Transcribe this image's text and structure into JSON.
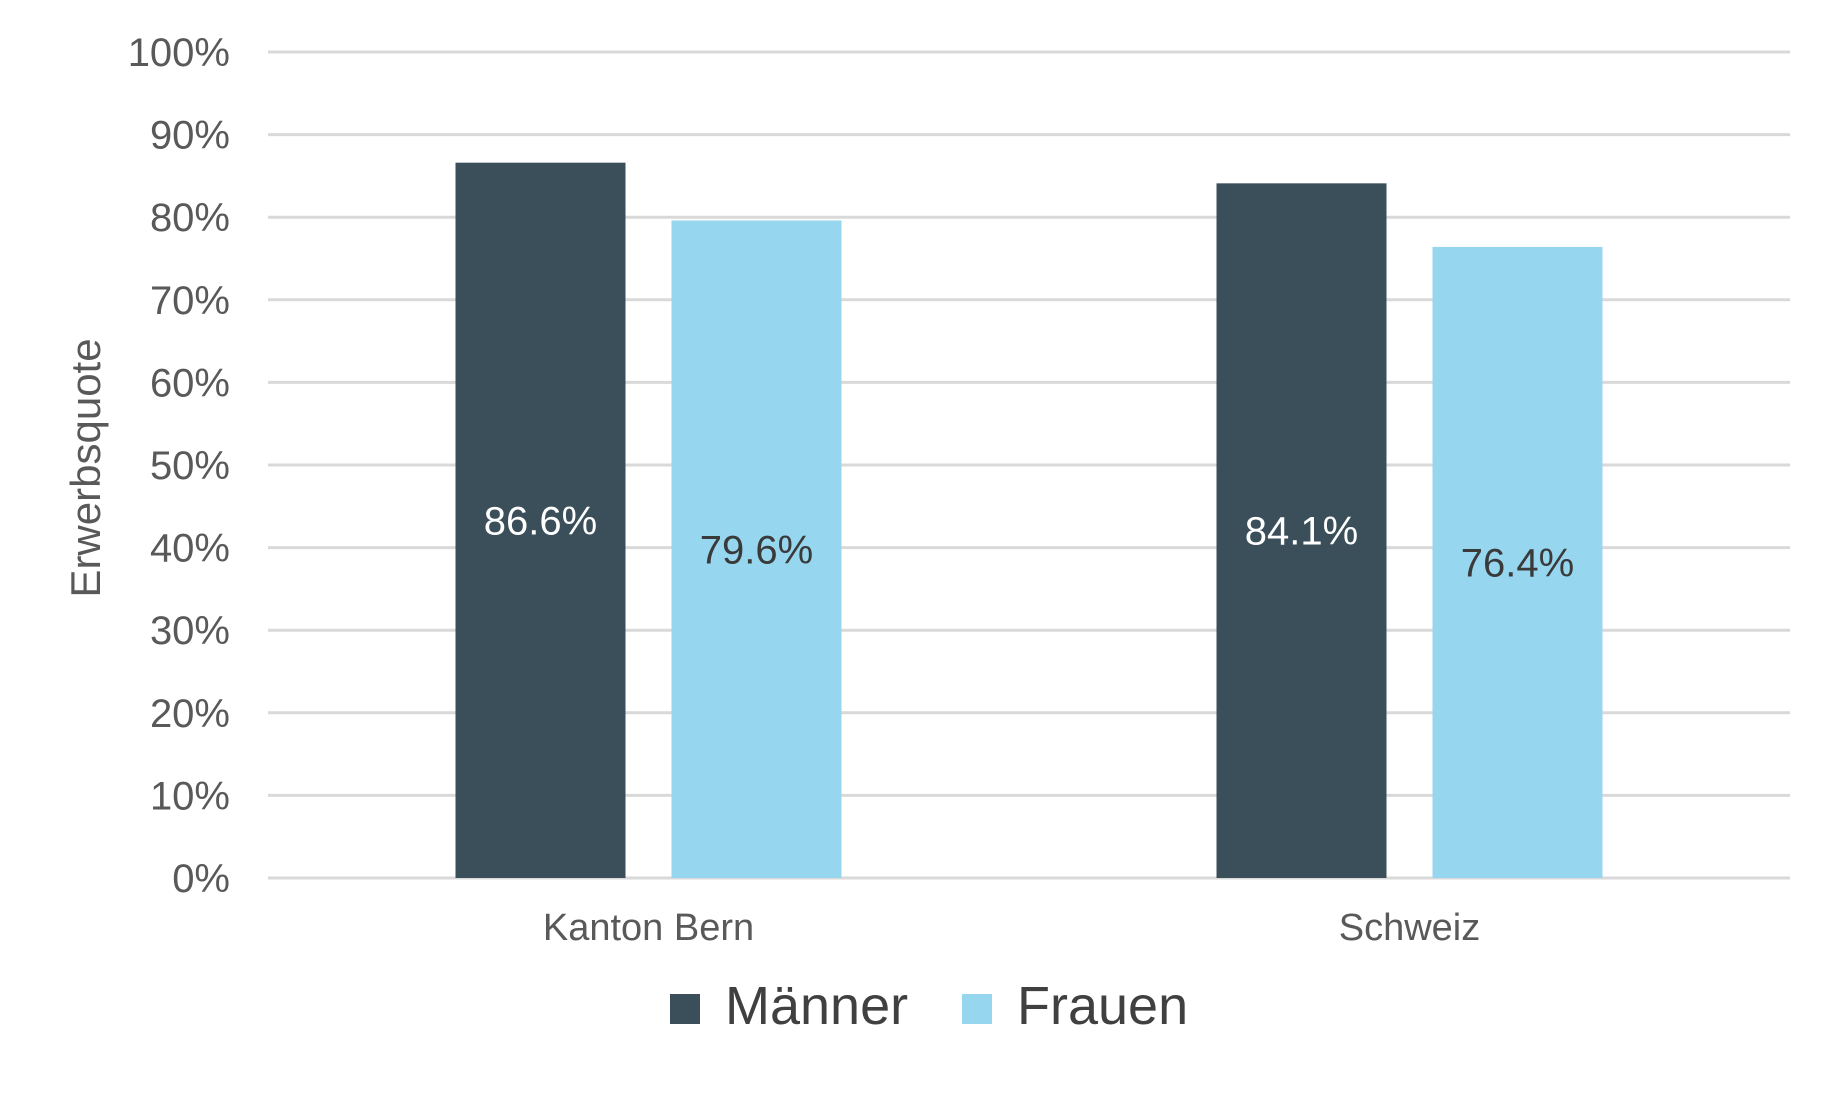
{
  "chart_data": {
    "type": "bar",
    "categories": [
      "Kanton Bern",
      "Schweiz"
    ],
    "series": [
      {
        "name": "Männer",
        "values": [
          86.6,
          84.1
        ],
        "labels": [
          "86.6%",
          "84.1%"
        ],
        "color": "#3b4f5a",
        "label_color": "#ffffff"
      },
      {
        "name": "Frauen",
        "values": [
          79.6,
          76.4
        ],
        "labels": [
          "79.6%",
          "76.4%"
        ],
        "color": "#96d6ee",
        "label_color": "#3a3a3a"
      }
    ],
    "ylabel": "Erwerbsquote",
    "ylim": [
      0,
      100
    ],
    "yticks": [
      0,
      10,
      20,
      30,
      40,
      50,
      60,
      70,
      80,
      90,
      100
    ],
    "ytick_labels": [
      "0%",
      "10%",
      "20%",
      "30%",
      "40%",
      "50%",
      "60%",
      "70%",
      "80%",
      "90%",
      "100%"
    ],
    "grid": true,
    "legend_position": "bottom-center",
    "colors": {
      "grid": "#d9d9d9",
      "tick_text": "#595959",
      "axis_title": "#595959",
      "legend_text": "#404040"
    }
  }
}
